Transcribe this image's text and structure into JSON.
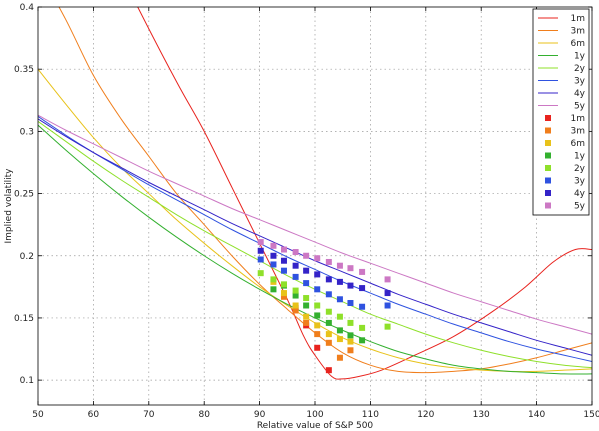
{
  "chart_data": {
    "type": "line",
    "title": "",
    "xlabel": "Relative value of S&P 500",
    "ylabel": "Implied volatility",
    "xlim": [
      50,
      150
    ],
    "ylim": [
      0.08,
      0.4
    ],
    "xticks": [
      "50",
      "60",
      "70",
      "80",
      "90",
      "100",
      "110",
      "120",
      "130",
      "140",
      "150"
    ],
    "yticks": [
      "0.1",
      "0.15",
      "0.2",
      "0.25",
      "0.3",
      "0.35",
      "0.4"
    ],
    "grid": true,
    "legend_position": "top-right",
    "colors": {
      "1m": "#e8231e",
      "3m": "#f07e1c",
      "6m": "#e8c21a",
      "1y": "#33b02f",
      "2y": "#8fe02a",
      "3y": "#2f52e0",
      "4y": "#3423c8",
      "5y": "#cc78c4"
    },
    "line_series": [
      {
        "name": "1m",
        "x": [
          50,
          68,
          75,
          80,
          85,
          90,
          95,
          98,
          100,
          103,
          105,
          108,
          112,
          118,
          125,
          132,
          138,
          143,
          147,
          150
        ],
        "y": [
          0.56,
          0.4,
          0.34,
          0.3,
          0.255,
          0.21,
          0.165,
          0.135,
          0.12,
          0.103,
          0.101,
          0.103,
          0.108,
          0.12,
          0.135,
          0.155,
          0.175,
          0.195,
          0.205,
          0.205
        ]
      },
      {
        "name": "3m",
        "x": [
          50,
          55,
          60,
          65,
          70,
          75,
          80,
          85,
          90,
          95,
          100,
          105,
          110,
          115,
          120,
          125,
          130,
          135,
          140,
          145,
          150
        ],
        "y": [
          0.43,
          0.39,
          0.345,
          0.31,
          0.28,
          0.25,
          0.225,
          0.2,
          0.177,
          0.157,
          0.138,
          0.122,
          0.112,
          0.107,
          0.106,
          0.107,
          0.109,
          0.113,
          0.118,
          0.124,
          0.13
        ]
      },
      {
        "name": "6m",
        "x": [
          50,
          55,
          60,
          65,
          70,
          75,
          80,
          85,
          90,
          95,
          100,
          105,
          110,
          115,
          120,
          125,
          130,
          135,
          140,
          145,
          150
        ],
        "y": [
          0.35,
          0.322,
          0.295,
          0.271,
          0.25,
          0.229,
          0.21,
          0.192,
          0.175,
          0.16,
          0.146,
          0.134,
          0.125,
          0.118,
          0.113,
          0.11,
          0.108,
          0.107,
          0.107,
          0.108,
          0.109
        ]
      },
      {
        "name": "1y",
        "x": [
          50,
          55,
          60,
          65,
          70,
          75,
          80,
          85,
          90,
          95,
          100,
          105,
          110,
          115,
          120,
          125,
          130,
          135,
          140,
          145,
          150
        ],
        "y": [
          0.305,
          0.285,
          0.266,
          0.248,
          0.231,
          0.215,
          0.2,
          0.186,
          0.173,
          0.161,
          0.15,
          0.14,
          0.131,
          0.123,
          0.117,
          0.112,
          0.109,
          0.107,
          0.106,
          0.105,
          0.105
        ]
      },
      {
        "name": "2y",
        "x": [
          50,
          55,
          60,
          65,
          70,
          75,
          80,
          85,
          90,
          95,
          100,
          105,
          110,
          115,
          120,
          125,
          130,
          135,
          140,
          145,
          150
        ],
        "y": [
          0.308,
          0.292,
          0.276,
          0.261,
          0.247,
          0.233,
          0.22,
          0.208,
          0.196,
          0.184,
          0.173,
          0.163,
          0.153,
          0.145,
          0.137,
          0.13,
          0.124,
          0.119,
          0.115,
          0.112,
          0.11
        ]
      },
      {
        "name": "3y",
        "x": [
          50,
          55,
          60,
          65,
          70,
          75,
          80,
          85,
          90,
          95,
          100,
          105,
          110,
          115,
          120,
          125,
          130,
          135,
          140,
          145,
          150
        ],
        "y": [
          0.312,
          0.297,
          0.283,
          0.27,
          0.257,
          0.245,
          0.233,
          0.221,
          0.21,
          0.199,
          0.189,
          0.179,
          0.17,
          0.161,
          0.153,
          0.145,
          0.138,
          0.131,
          0.125,
          0.12,
          0.115
        ]
      },
      {
        "name": "4y",
        "x": [
          50,
          55,
          60,
          65,
          70,
          75,
          80,
          85,
          90,
          95,
          100,
          105,
          110,
          115,
          120,
          125,
          130,
          135,
          140,
          145,
          150
        ],
        "y": [
          0.31,
          0.296,
          0.283,
          0.271,
          0.259,
          0.248,
          0.237,
          0.226,
          0.216,
          0.206,
          0.196,
          0.187,
          0.178,
          0.169,
          0.161,
          0.153,
          0.146,
          0.139,
          0.132,
          0.126,
          0.12
        ]
      },
      {
        "name": "5y",
        "x": [
          50,
          55,
          60,
          65,
          70,
          75,
          80,
          85,
          90,
          95,
          100,
          105,
          110,
          115,
          120,
          125,
          130,
          135,
          140,
          145,
          150
        ],
        "y": [
          0.313,
          0.301,
          0.29,
          0.279,
          0.268,
          0.258,
          0.248,
          0.238,
          0.229,
          0.22,
          0.211,
          0.202,
          0.194,
          0.186,
          0.178,
          0.17,
          0.163,
          0.156,
          0.149,
          0.143,
          0.137
        ]
      }
    ],
    "scatter_series": [
      {
        "name": "1m",
        "x": [
          96.5,
          98.4,
          100.4,
          102.5
        ],
        "y": [
          0.158,
          0.144,
          0.126,
          0.108
        ]
      },
      {
        "name": "3m",
        "x": [
          94.4,
          96.5,
          98.4,
          100.4,
          102.5,
          104.5,
          106.4
        ],
        "y": [
          0.167,
          0.156,
          0.146,
          0.137,
          0.13,
          0.118,
          0.124
        ]
      },
      {
        "name": "6m",
        "x": [
          92.5,
          94.4,
          96.5,
          98.4,
          100.4,
          102.5,
          104.5,
          106.4
        ],
        "y": [
          0.179,
          0.17,
          0.16,
          0.151,
          0.144,
          0.137,
          0.133,
          0.131
        ]
      },
      {
        "name": "1y",
        "x": [
          92.5,
          94.4,
          96.5,
          98.4,
          100.4,
          102.5,
          104.5,
          106.4,
          108.5
        ],
        "y": [
          0.173,
          0.176,
          0.168,
          0.16,
          0.152,
          0.146,
          0.14,
          0.136,
          0.132
        ]
      },
      {
        "name": "2y",
        "x": [
          90.2,
          92.5,
          94.4,
          96.5,
          98.4,
          100.4,
          102.5,
          104.5,
          106.4,
          108.5,
          113.1
        ],
        "y": [
          0.186,
          0.181,
          0.177,
          0.172,
          0.166,
          0.16,
          0.155,
          0.151,
          0.146,
          0.142,
          0.143
        ]
      },
      {
        "name": "3y",
        "x": [
          90.2,
          92.5,
          94.4,
          96.5,
          98.4,
          100.4,
          102.5,
          104.5,
          106.4,
          108.5,
          113.1
        ],
        "y": [
          0.197,
          0.193,
          0.188,
          0.183,
          0.178,
          0.173,
          0.169,
          0.165,
          0.162,
          0.159,
          0.16
        ]
      },
      {
        "name": "4y",
        "x": [
          90.2,
          92.5,
          94.4,
          96.5,
          98.4,
          100.4,
          102.5,
          104.5,
          106.4,
          108.5,
          113.1
        ],
        "y": [
          0.204,
          0.2,
          0.196,
          0.192,
          0.188,
          0.185,
          0.181,
          0.179,
          0.176,
          0.174,
          0.17
        ]
      },
      {
        "name": "5y",
        "x": [
          90.2,
          92.5,
          94.4,
          96.5,
          98.4,
          100.4,
          102.5,
          104.5,
          106.4,
          108.5,
          113.1
        ],
        "y": [
          0.211,
          0.208,
          0.205,
          0.203,
          0.2,
          0.198,
          0.195,
          0.192,
          0.19,
          0.187,
          0.181
        ]
      }
    ],
    "legend": {
      "lines": [
        "1m",
        "3m",
        "6m",
        "1y",
        "2y",
        "3y",
        "4y",
        "5y"
      ],
      "markers": [
        "1m",
        "3m",
        "6m",
        "1y",
        "2y",
        "3y",
        "4y",
        "5y"
      ]
    }
  }
}
